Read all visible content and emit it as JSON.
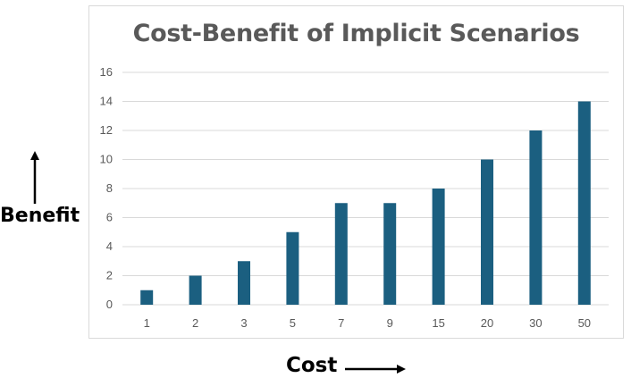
{
  "colors": {
    "bar": "#1b5f80",
    "grid": "#d9d9d9",
    "text": "#595959"
  },
  "chart_data": {
    "type": "bar",
    "title": "Cost-Benefit of Implicit Scenarios",
    "xlabel": "Cost",
    "ylabel": "Benefit",
    "categories": [
      "1",
      "2",
      "3",
      "5",
      "7",
      "9",
      "15",
      "20",
      "30",
      "50"
    ],
    "values": [
      1,
      2,
      3,
      5,
      7,
      7,
      8,
      10,
      12,
      14
    ],
    "ylim": [
      0,
      16
    ],
    "yticks": [
      0,
      2,
      4,
      6,
      8,
      10,
      12,
      14,
      16
    ],
    "grid": true,
    "legend": "none"
  }
}
